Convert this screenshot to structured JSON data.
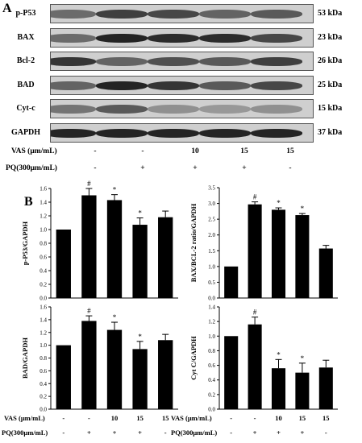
{
  "panel_a": {
    "letter": "A",
    "blots": [
      {
        "label": "p-P53",
        "mw": "53 kDa",
        "intensity": [
          0.55,
          0.8,
          0.75,
          0.6,
          0.65
        ]
      },
      {
        "label": "BAX",
        "mw": "23 kDa",
        "intensity": [
          0.55,
          0.95,
          0.9,
          0.9,
          0.75
        ]
      },
      {
        "label": "Bcl-2",
        "mw": "26 kDa",
        "intensity": [
          0.85,
          0.6,
          0.7,
          0.65,
          0.8
        ]
      },
      {
        "label": "BAD",
        "mw": "25 kDa",
        "intensity": [
          0.6,
          0.95,
          0.85,
          0.65,
          0.75
        ]
      },
      {
        "label": "Cyt-c",
        "mw": "15 kDa",
        "intensity": [
          0.5,
          0.65,
          0.35,
          0.3,
          0.35
        ]
      },
      {
        "label": "GAPDH",
        "mw": "37 kDa",
        "intensity": [
          0.95,
          0.95,
          0.95,
          0.95,
          0.95
        ]
      }
    ],
    "treatments": [
      {
        "label": "VAS (μm/mL)",
        "values": [
          "-",
          "-",
          "10",
          "15",
          "15"
        ]
      },
      {
        "label": "PQ(300μm/mL)",
        "values": [
          "-",
          "+",
          "+",
          "+",
          "-"
        ]
      }
    ]
  },
  "panel_b": {
    "letter": "B",
    "treatments": [
      {
        "label": "VAS (μm/mL)",
        "values": [
          "-",
          "-",
          "10",
          "15",
          "15"
        ]
      },
      {
        "label": "PQ(300μm/mL)",
        "values": [
          "-",
          "+",
          "+",
          "+",
          "-"
        ]
      }
    ]
  },
  "chart_data": [
    {
      "type": "bar",
      "ylabel": "p-P53/GAPDH",
      "ylim": [
        0,
        1.6
      ],
      "yticks": [
        "0.0",
        "0.2",
        "0.4",
        "0.6",
        "0.8",
        "1.0",
        "1.2",
        "1.4",
        "1.6"
      ],
      "values": [
        1.0,
        1.5,
        1.43,
        1.07,
        1.18
      ],
      "errors": [
        0,
        0.1,
        0.08,
        0.1,
        0.09
      ],
      "marks": [
        "",
        "#",
        "*",
        "*",
        ""
      ]
    },
    {
      "type": "bar",
      "ylabel": "BAX/BCL-2 ratio/GAPDH",
      "ylim": [
        0,
        3.5
      ],
      "yticks": [
        "0.0",
        "0.5",
        "1.0",
        "1.5",
        "2.0",
        "2.5",
        "3.0",
        "3.5"
      ],
      "values": [
        1.0,
        2.97,
        2.8,
        2.63,
        1.57
      ],
      "errors": [
        0,
        0.08,
        0.06,
        0.05,
        0.1
      ],
      "marks": [
        "",
        "#",
        "*",
        "*",
        ""
      ]
    },
    {
      "type": "bar",
      "ylabel": "BAD/GAPDH",
      "ylim": [
        0,
        1.6
      ],
      "yticks": [
        "0.0",
        "0.2",
        "0.4",
        "0.6",
        "0.8",
        "1.0",
        "1.2",
        "1.4",
        "1.6"
      ],
      "values": [
        1.0,
        1.38,
        1.24,
        0.94,
        1.08
      ],
      "errors": [
        0,
        0.08,
        0.12,
        0.12,
        0.09
      ],
      "marks": [
        "",
        "#",
        "*",
        "*",
        ""
      ]
    },
    {
      "type": "bar",
      "ylabel": "Cyt C/GAPDH",
      "ylim": [
        0,
        1.4
      ],
      "yticks": [
        "0.0",
        "0.2",
        "0.4",
        "0.6",
        "0.8",
        "1.0",
        "1.2",
        "1.4"
      ],
      "values": [
        1.0,
        1.16,
        0.56,
        0.5,
        0.57
      ],
      "errors": [
        0,
        0.1,
        0.12,
        0.13,
        0.1
      ],
      "marks": [
        "",
        "#",
        "*",
        "*",
        ""
      ]
    }
  ]
}
